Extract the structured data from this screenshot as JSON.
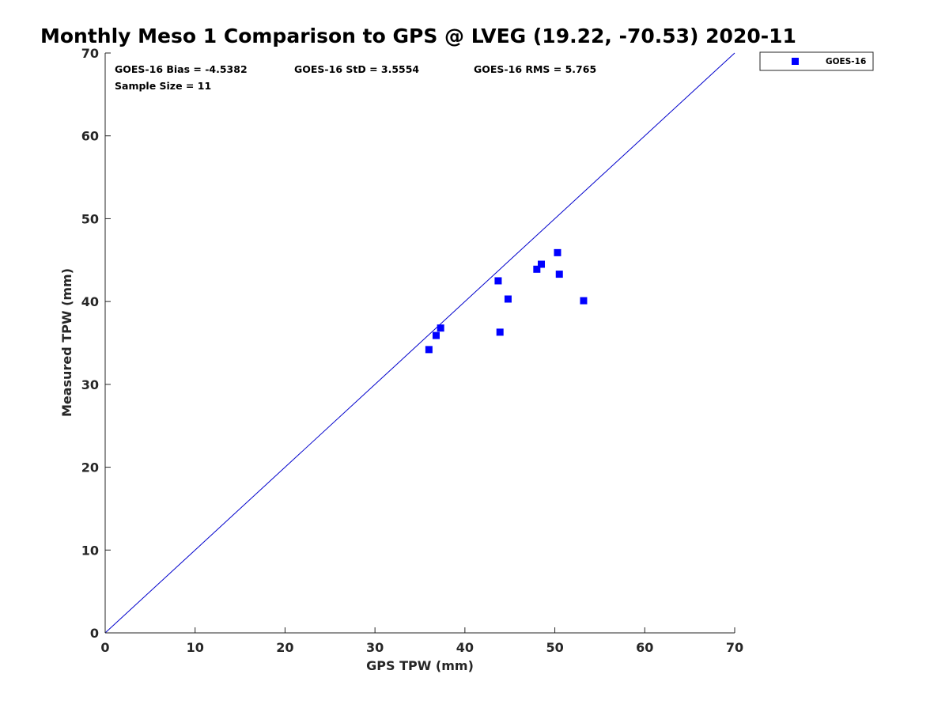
{
  "chart_data": {
    "type": "scatter",
    "title": "Monthly Meso 1 Comparison to GPS @ LVEG (19.22, -70.53) 2020-11",
    "xlabel": "GPS TPW (mm)",
    "ylabel": "Measured TPW (mm)",
    "xlim": [
      0,
      70
    ],
    "ylim": [
      0,
      70
    ],
    "xticks": [
      0,
      10,
      20,
      30,
      40,
      50,
      60,
      70
    ],
    "yticks": [
      0,
      10,
      20,
      30,
      40,
      50,
      60,
      70
    ],
    "grid": false,
    "legend_position": "outside-top-right",
    "reference_line": {
      "from": [
        0,
        0
      ],
      "to": [
        70,
        70
      ],
      "color": "#0000cc"
    },
    "stats": {
      "bias": "GOES-16 Bias = -4.5382",
      "std": "GOES-16 StD = 3.5554",
      "rms": "GOES-16 RMS = 5.765",
      "sample_size": "Sample Size = 11"
    },
    "series": [
      {
        "name": "GOES-16",
        "color": "#0000ff",
        "marker": "square",
        "points": [
          [
            36.0,
            34.2
          ],
          [
            36.8,
            35.9
          ],
          [
            37.3,
            36.8
          ],
          [
            43.7,
            42.5
          ],
          [
            43.9,
            36.3
          ],
          [
            44.8,
            40.3
          ],
          [
            48.0,
            43.9
          ],
          [
            48.5,
            44.5
          ],
          [
            50.3,
            45.9
          ],
          [
            50.5,
            43.3
          ],
          [
            53.2,
            40.1
          ]
        ]
      }
    ]
  }
}
